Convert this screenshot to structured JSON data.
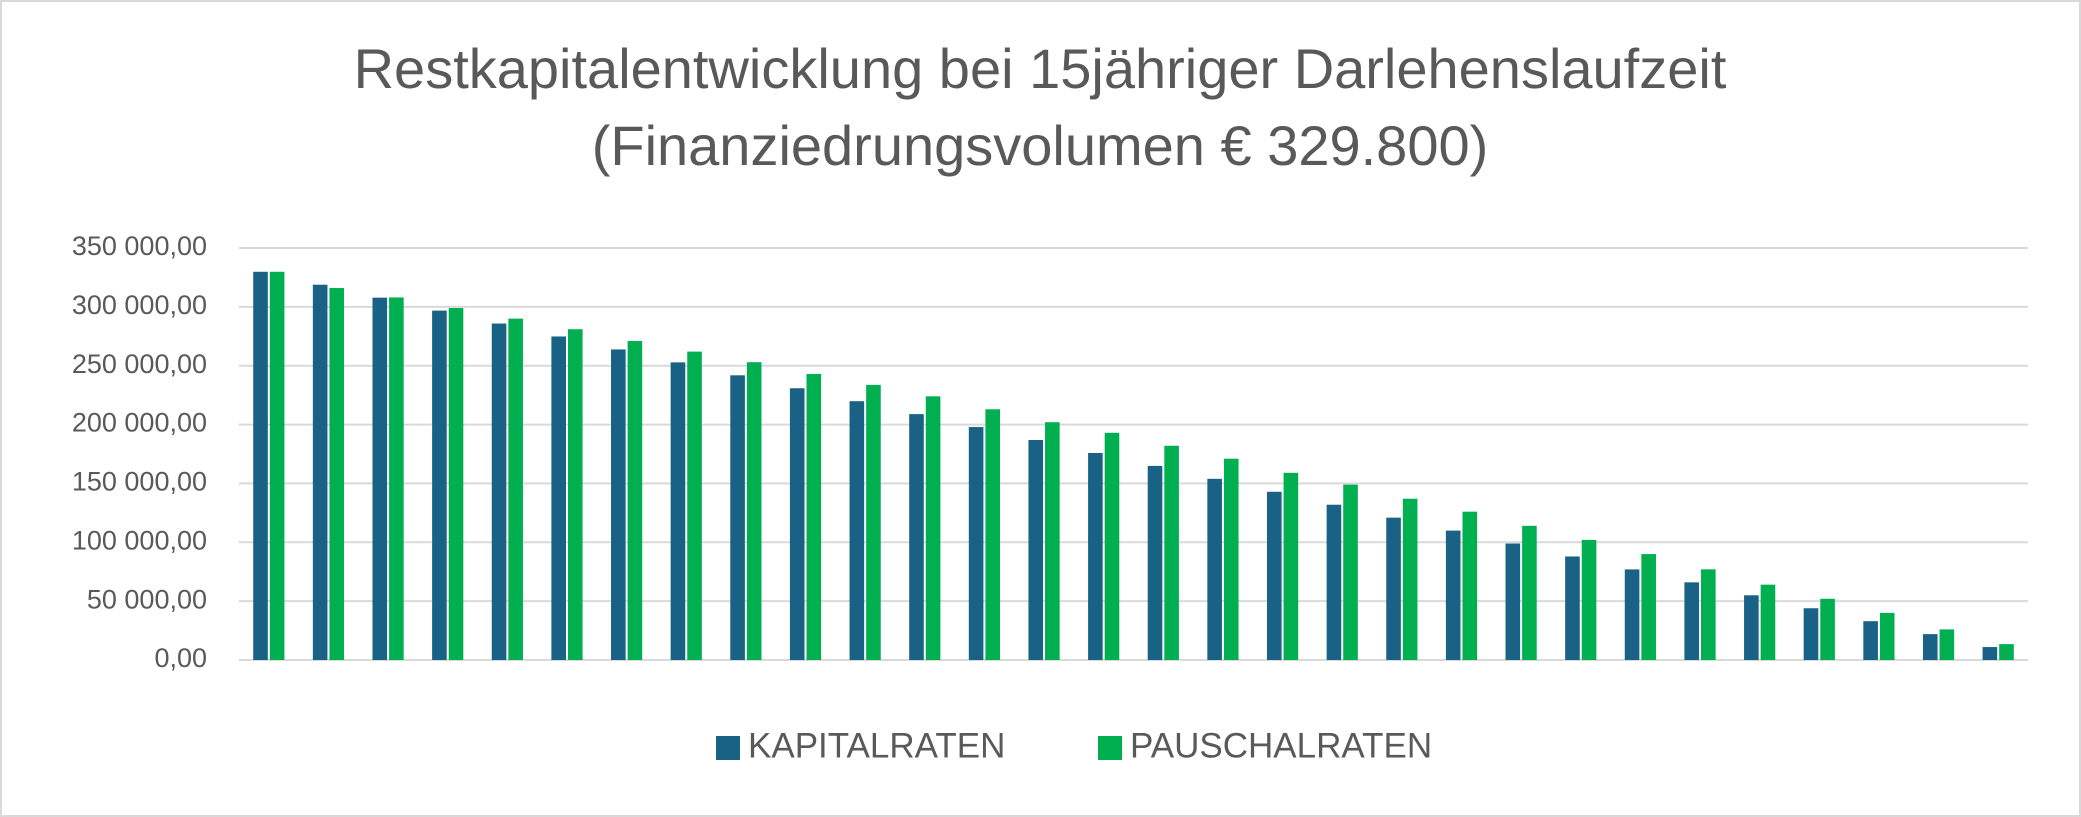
{
  "chart_data": {
    "type": "bar",
    "title": [
      "Restkapitalentwicklung bei 15jähriger Darlehenslaufzeit",
      "(Finanziedrungsvolumen € 329.800)"
    ],
    "categories": [
      null,
      null,
      null,
      null,
      null,
      null,
      null,
      null,
      null,
      null,
      null,
      null,
      null,
      null,
      null,
      null,
      null,
      null,
      null,
      null,
      null,
      null,
      null,
      null,
      null,
      null,
      null,
      null,
      null,
      null
    ],
    "series": [
      {
        "name": "KAPITALRATEN",
        "color": "#1a6285",
        "values": [
          329800,
          318807,
          307813,
          296820,
          285827,
          274833,
          263840,
          252847,
          241853,
          230860,
          219867,
          208873,
          197880,
          186887,
          175893,
          164900,
          153907,
          142913,
          131920,
          120927,
          109933,
          98940,
          87947,
          76953,
          65960,
          54967,
          43973,
          32980,
          21987,
          10993
        ]
      },
      {
        "name": "PAUSCHALRATEN",
        "color": "#00b050",
        "values": [
          329800,
          316000,
          308000,
          299000,
          290000,
          281000,
          271000,
          262000,
          253000,
          243000,
          233700,
          224000,
          213000,
          202000,
          193000,
          182000,
          171000,
          159000,
          149000,
          137000,
          126000,
          114000,
          102000,
          90000,
          77000,
          64000,
          52000,
          40000,
          26000,
          13500
        ]
      }
    ],
    "ylim": [
      0,
      350000
    ],
    "yticks": [
      {
        "value": 0,
        "label": "0,00"
      },
      {
        "value": 50000,
        "label": "50 000,00"
      },
      {
        "value": 100000,
        "label": "100 000,00"
      },
      {
        "value": 150000,
        "label": "150 000,00"
      },
      {
        "value": 200000,
        "label": "200 000,00"
      },
      {
        "value": 250000,
        "label": "250 000,00"
      },
      {
        "value": 300000,
        "label": "300 000,00"
      },
      {
        "value": 350000,
        "label": "350 000,00"
      }
    ],
    "grid": true,
    "legend": "bottom"
  }
}
